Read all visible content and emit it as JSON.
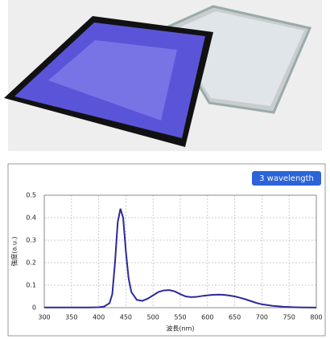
{
  "chart_data": {
    "type": "line",
    "badge": "3 wavelength",
    "ylabel": "強度(a.u.)",
    "xlabel": "波長(nm)",
    "x": [
      300,
      350,
      380,
      400,
      410,
      420,
      425,
      430,
      435,
      440,
      445,
      450,
      455,
      460,
      470,
      480,
      490,
      500,
      510,
      520,
      530,
      540,
      550,
      560,
      570,
      580,
      590,
      600,
      610,
      620,
      630,
      640,
      650,
      660,
      670,
      680,
      690,
      700,
      720,
      740,
      760,
      780,
      800
    ],
    "series": [
      {
        "color": "#2a2a9a",
        "values": [
          0.001,
          0.001,
          0.001,
          0.002,
          0.005,
          0.02,
          0.06,
          0.2,
          0.38,
          0.44,
          0.4,
          0.25,
          0.13,
          0.07,
          0.035,
          0.03,
          0.04,
          0.055,
          0.07,
          0.077,
          0.078,
          0.072,
          0.06,
          0.05,
          0.047,
          0.048,
          0.052,
          0.055,
          0.057,
          0.058,
          0.057,
          0.054,
          0.05,
          0.044,
          0.037,
          0.029,
          0.021,
          0.015,
          0.008,
          0.004,
          0.002,
          0.001,
          0.0005
        ]
      }
    ],
    "xlim": [
      300,
      800
    ],
    "xticks": [
      300,
      350,
      400,
      450,
      500,
      550,
      600,
      650,
      700,
      750,
      800
    ],
    "ylim": [
      0,
      0.5
    ],
    "yticks": [
      0,
      0.1,
      0.2,
      0.3,
      0.4,
      0.5
    ],
    "grid": true
  }
}
